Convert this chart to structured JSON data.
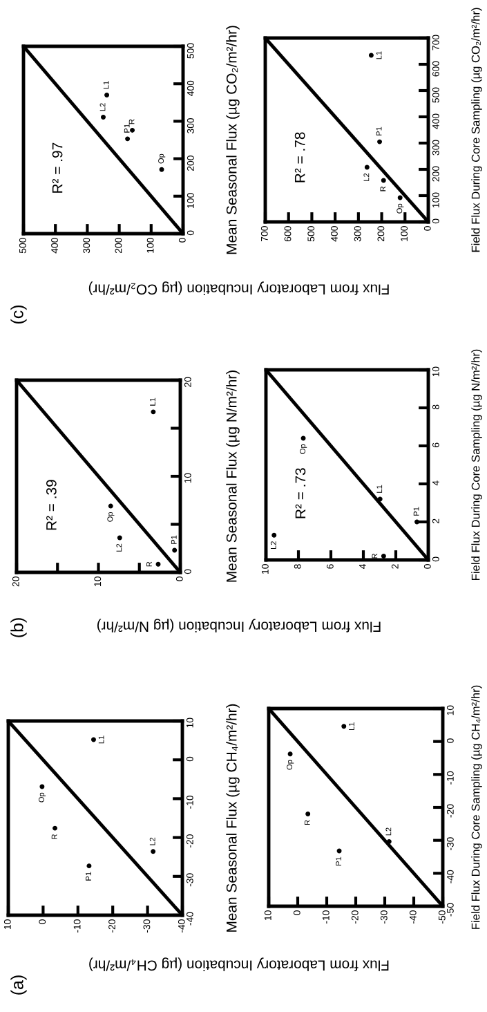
{
  "chart_data": [
    {
      "type": "scatter",
      "title": "(a)",
      "xlabel": "Flux from Laboratory Incubation (µg CH₄/m²/hr)",
      "ylabel": "Mean Seasonal Flux (µg CH₄/m²/hr)",
      "xlim": [
        10,
        -40
      ],
      "ylim": [
        -40,
        10
      ],
      "xticks": [
        10,
        0,
        -10,
        -20,
        -30,
        -40
      ],
      "yticks": [
        -40,
        -30,
        -20,
        -10,
        0,
        10
      ],
      "series": [
        {
          "marker": "circle",
          "color": "#000000",
          "x": [
            -14.5,
            0.3,
            -3.4,
            -13.2,
            -31.6
          ],
          "values": [
            5.2,
            -6.9,
            -17.6,
            -27.3,
            -23.6
          ]
        },
        {
          "type": "line",
          "color": "#000000",
          "x": [
            -40,
            10
          ],
          "values": [
            -40,
            10
          ]
        }
      ],
      "annotations": [
        {
          "text": "L1",
          "x": -14.5,
          "y": 5.2
        },
        {
          "text": "Op",
          "x": 0.3,
          "y": -6.9
        },
        {
          "text": "R",
          "x": -3.4,
          "y": -17.6
        },
        {
          "text": "P1",
          "x": -13.2,
          "y": -27.3
        },
        {
          "text": "L2",
          "x": -31.6,
          "y": -23.6
        }
      ]
    },
    {
      "type": "scatter",
      "ylabel": "Field Flux During Core Sampling (µg CH₄/m²/hr)",
      "xlim": [
        10,
        -50
      ],
      "ylim": [
        -50,
        10
      ],
      "xticks": [
        10,
        0,
        -10,
        -20,
        -30,
        -40,
        -50
      ],
      "yticks": [
        -50,
        -40,
        -30,
        -20,
        -10,
        0,
        10
      ],
      "series": [
        {
          "marker": "circle",
          "color": "#000000",
          "x": [
            -15.9,
            2.6,
            -3.5,
            -14.3,
            -31.5
          ],
          "values": [
            4.6,
            -3.8,
            -22,
            -33.2,
            -30.4
          ]
        },
        {
          "type": "line",
          "color": "#000000",
          "x": [
            -50,
            10
          ],
          "values": [
            -50,
            10
          ]
        }
      ],
      "annotations": [
        {
          "text": "L1",
          "x": -15.9,
          "y": 4.6
        },
        {
          "text": "Op",
          "x": 2.6,
          "y": -3.8
        },
        {
          "text": "R",
          "x": -3.5,
          "y": -22
        },
        {
          "text": "P1",
          "x": -14.3,
          "y": -33.2
        },
        {
          "text": "L2",
          "x": -31.5,
          "y": -30.4
        }
      ]
    },
    {
      "type": "scatter",
      "title": "(b)",
      "xlabel": "Flux from Laboratory Incubation (µg N/m²/hr)",
      "ylabel": "Mean Seasonal Flux (µg N/m²/hr)",
      "xlim": [
        20,
        0
      ],
      "ylim": [
        0,
        20
      ],
      "xticks": [
        20,
        {
          "value": 15,
          "label": null
        },
        10,
        {
          "value": 5,
          "label": null
        },
        0
      ],
      "yticks": [
        0,
        {
          "value": 5,
          "label": null
        },
        10,
        {
          "value": 15,
          "label": null
        },
        20
      ],
      "series": [
        {
          "marker": "circle",
          "color": "#000000",
          "x": [
            3.3,
            8.5,
            7.4,
            2.7,
            0.7
          ],
          "values": [
            16.7,
            6.9,
            3.6,
            0.85,
            2.3
          ]
        },
        {
          "type": "line",
          "color": "#000000",
          "x": [
            0,
            20
          ],
          "values": [
            0,
            20
          ]
        }
      ],
      "annotations": [
        "R² = .39",
        {
          "text": "L1",
          "x": 3.3,
          "y": 16.7
        },
        {
          "text": "Op",
          "x": 8.5,
          "y": 6.9
        },
        {
          "text": "L2",
          "x": 7.4,
          "y": 3.6
        },
        {
          "text": "R",
          "x": 2.7,
          "y": 0.85
        },
        {
          "text": "P1",
          "x": 0.7,
          "y": 2.3
        }
      ]
    },
    {
      "type": "scatter",
      "ylabel": "Field Flux During Core Sampling (µg N/m²/hr)",
      "xlim": [
        10,
        0
      ],
      "ylim": [
        0,
        10
      ],
      "xticks": [
        10,
        8,
        6,
        4,
        2,
        0
      ],
      "yticks": [
        0,
        2,
        4,
        6,
        8,
        10
      ],
      "series": [
        {
          "marker": "circle",
          "color": "#000000",
          "x": [
            9.5,
            2.75,
            2.97,
            0.7,
            7.7
          ],
          "values": [
            1.3,
            0.2,
            3.2,
            2.0,
            6.4
          ]
        },
        {
          "type": "line",
          "color": "#000000",
          "x": [
            0,
            10
          ],
          "values": [
            0,
            10
          ]
        }
      ],
      "annotations": [
        "R² = .73",
        {
          "text": "L2",
          "x": 9.5,
          "y": 1.3
        },
        {
          "text": "R",
          "x": 2.75,
          "y": 0.2
        },
        {
          "text": "L1",
          "x": 2.97,
          "y": 3.2
        },
        {
          "text": "P1",
          "x": 0.7,
          "y": 2.0
        },
        {
          "text": "Op",
          "x": 7.7,
          "y": 6.4
        }
      ]
    },
    {
      "type": "scatter",
      "title": "(c)",
      "xlabel": "Flux from Laboratory Incubation (µg CO₂/m²/hr)",
      "ylabel": "Mean Seasonal Flux (µg CO₂/m²/hr)",
      "xlim": [
        500,
        0
      ],
      "ylim": [
        0,
        500
      ],
      "xticks": [
        500,
        400,
        300,
        200,
        100,
        0
      ],
      "yticks": [
        0,
        100,
        200,
        300,
        400,
        500
      ],
      "series": [
        {
          "marker": "circle",
          "color": "#000000",
          "x": [
            239,
            250,
            159,
            174,
            67
          ],
          "values": [
            370,
            311,
            276,
            253,
            171
          ]
        },
        {
          "type": "line",
          "color": "#000000",
          "x": [
            0,
            500
          ],
          "values": [
            0,
            500
          ]
        }
      ],
      "annotations": [
        "R² = .97",
        {
          "text": "L1",
          "x": 239,
          "y": 370
        },
        {
          "text": "L2",
          "x": 250,
          "y": 311
        },
        {
          "text": "R",
          "x": 159,
          "y": 276
        },
        {
          "text": "P1",
          "x": 174,
          "y": 253
        },
        {
          "text": "Op",
          "x": 67,
          "y": 171
        }
      ]
    },
    {
      "type": "scatter",
      "ylabel": "Field Flux During Core Sampling (µg CO₂/m²/hr)",
      "xlim": [
        700,
        0
      ],
      "ylim": [
        0,
        700
      ],
      "xticks": [
        700,
        600,
        500,
        400,
        300,
        200,
        100,
        0
      ],
      "yticks": [
        0,
        100,
        200,
        300,
        400,
        500,
        600,
        700
      ],
      "series": [
        {
          "marker": "circle",
          "color": "#000000",
          "x": [
            245,
            209,
            263,
            192,
            121
          ],
          "values": [
            634,
            305,
            208,
            158,
            92
          ]
        },
        {
          "type": "line",
          "color": "#000000",
          "x": [
            0,
            700
          ],
          "values": [
            0,
            700
          ]
        }
      ],
      "annotations": [
        "R² = .78",
        {
          "text": "L1",
          "x": 245,
          "y": 634
        },
        {
          "text": "P1",
          "x": 209,
          "y": 305
        },
        {
          "text": "L2",
          "x": 263,
          "y": 208
        },
        {
          "text": "R",
          "x": 192,
          "y": 158
        },
        {
          "text": "Op",
          "x": 121,
          "y": 92
        }
      ]
    }
  ]
}
